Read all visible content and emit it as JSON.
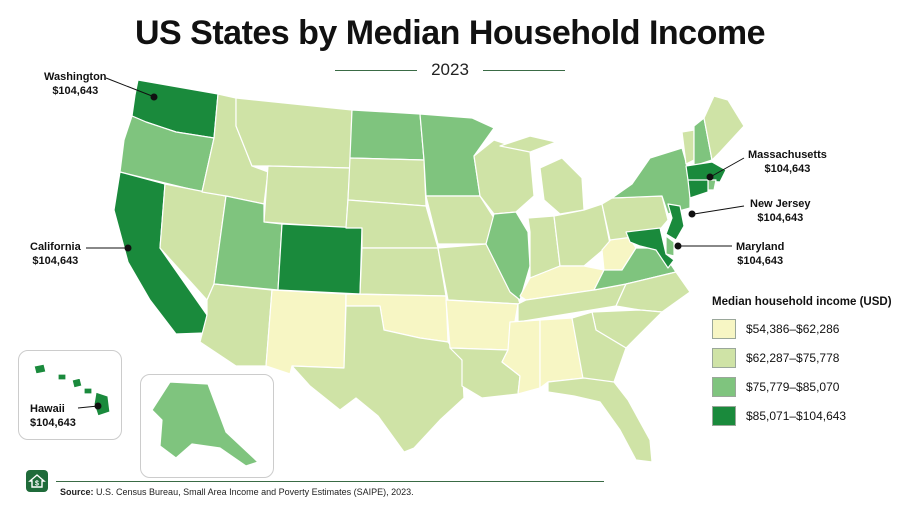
{
  "title": "US States by Median Household Income",
  "subtitle": "2023",
  "legend": {
    "title": "Median household income (USD)",
    "bins": [
      {
        "label": "$54,386–$62,286",
        "color": "#f7f6c4"
      },
      {
        "label": "$62,287–$75,778",
        "color": "#cfe3a6"
      },
      {
        "label": "$75,779–$85,070",
        "color": "#7fc47e"
      },
      {
        "label": "$85,071–$104,643",
        "color": "#1a8a3c"
      }
    ]
  },
  "callouts": {
    "washington": {
      "name": "Washington",
      "value": "$104,643"
    },
    "california": {
      "name": "California",
      "value": "$104,643"
    },
    "hawaii": {
      "name": "Hawaii",
      "value": "$104,643"
    },
    "massachusetts": {
      "name": "Massachusetts",
      "value": "$104,643"
    },
    "new_jersey": {
      "name": "New Jersey",
      "value": "$104,643"
    },
    "maryland": {
      "name": "Maryland",
      "value": "$104,643"
    }
  },
  "state_bins": {
    "WA": 3,
    "OR": 2,
    "CA": 3,
    "NV": 1,
    "ID": 1,
    "MT": 1,
    "WY": 1,
    "UT": 2,
    "CO": 3,
    "AZ": 1,
    "NM": 0,
    "ND": 2,
    "SD": 1,
    "NE": 1,
    "KS": 1,
    "OK": 0,
    "TX": 1,
    "MN": 2,
    "IA": 1,
    "MO": 1,
    "AR": 0,
    "LA": 1,
    "WI": 1,
    "IL": 2,
    "MI": 1,
    "IN": 1,
    "KY": 0,
    "TN": 1,
    "MS": 0,
    "AL": 0,
    "OH": 1,
    "WV": 0,
    "VA": 2,
    "NC": 1,
    "SC": 1,
    "GA": 1,
    "FL": 1,
    "PA": 1,
    "NY": 2,
    "VT": 1,
    "NH": 2,
    "ME": 1,
    "MA": 3,
    "CT": 3,
    "RI": 2,
    "NJ": 3,
    "DE": 2,
    "MD": 3,
    "AK": 2,
    "HI": 3
  },
  "source": {
    "label": "Source:",
    "text": "U.S. Census Bureau, Small Area Income and Poverty Estimates (SAIPE), 2023."
  },
  "logo_icon": "house-dollar-icon"
}
